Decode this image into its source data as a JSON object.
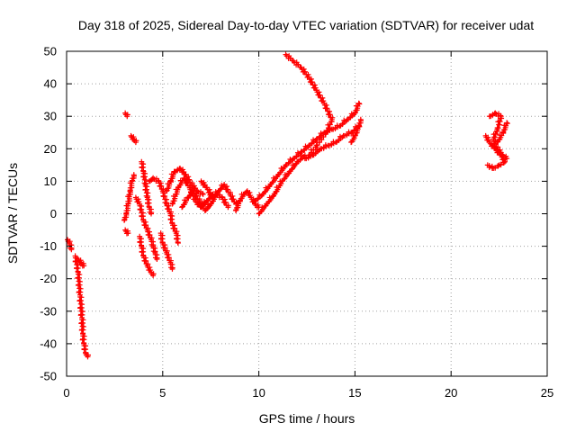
{
  "chart_data": {
    "type": "scatter",
    "title": "Day 318 of 2025, Sidereal Day-to-day VTEC variation (SDTVAR) for receiver udat",
    "xlabel": "GPS time / hours",
    "ylabel": "SDTVAR / TECUs",
    "xlim": [
      0,
      25
    ],
    "ylim": [
      -50,
      50
    ],
    "xticks": [
      0,
      5,
      10,
      15,
      20,
      25
    ],
    "yticks": [
      -50,
      -40,
      -30,
      -20,
      -10,
      0,
      10,
      20,
      30,
      40,
      50
    ],
    "grid": true,
    "marker": "plus",
    "color": "#ff0000",
    "tracks": [
      [
        [
          0.05,
          -8
        ],
        [
          0.15,
          -9
        ],
        [
          0.25,
          -11
        ]
      ],
      [
        [
          0.45,
          -13
        ],
        [
          0.6,
          -18
        ],
        [
          0.7,
          -25
        ],
        [
          0.8,
          -32
        ],
        [
          0.85,
          -37
        ],
        [
          0.9,
          -40
        ],
        [
          1.0,
          -43
        ],
        [
          1.1,
          -44
        ]
      ],
      [
        [
          0.6,
          -14
        ],
        [
          0.75,
          -15
        ],
        [
          0.9,
          -16
        ]
      ],
      [
        [
          3.0,
          -2
        ],
        [
          3.1,
          0
        ],
        [
          3.2,
          3
        ],
        [
          3.3,
          7
        ],
        [
          3.4,
          10
        ],
        [
          3.5,
          12
        ]
      ],
      [
        [
          3.05,
          -5
        ],
        [
          3.2,
          -6
        ]
      ],
      [
        [
          3.05,
          31
        ],
        [
          3.15,
          30
        ]
      ],
      [
        [
          3.35,
          24
        ],
        [
          3.5,
          23
        ],
        [
          3.6,
          22
        ]
      ],
      [
        [
          3.6,
          5
        ],
        [
          3.8,
          3
        ],
        [
          4.0,
          -2
        ],
        [
          4.2,
          -5
        ],
        [
          4.4,
          -8
        ],
        [
          4.5,
          -10
        ],
        [
          4.6,
          -12
        ],
        [
          4.7,
          -14
        ]
      ],
      [
        [
          3.8,
          -7
        ],
        [
          3.9,
          -10
        ],
        [
          4.0,
          -13
        ],
        [
          4.2,
          -16
        ],
        [
          4.4,
          -18
        ],
        [
          4.5,
          -19
        ]
      ],
      [
        [
          3.9,
          16
        ],
        [
          4.0,
          13
        ],
        [
          4.1,
          9
        ],
        [
          4.2,
          5
        ],
        [
          4.3,
          2
        ],
        [
          4.4,
          0
        ]
      ],
      [
        [
          4.3,
          10
        ],
        [
          4.5,
          11
        ],
        [
          4.8,
          10
        ],
        [
          5.0,
          7
        ],
        [
          5.2,
          3
        ],
        [
          5.4,
          0
        ],
        [
          5.5,
          -3
        ],
        [
          5.7,
          -6
        ],
        [
          5.8,
          -9
        ]
      ],
      [
        [
          4.9,
          -6
        ],
        [
          5.0,
          -9
        ],
        [
          5.2,
          -12
        ],
        [
          5.4,
          -15
        ],
        [
          5.5,
          -17
        ]
      ],
      [
        [
          5.2,
          7
        ],
        [
          5.4,
          10
        ],
        [
          5.6,
          13
        ],
        [
          5.9,
          14
        ],
        [
          6.2,
          12
        ],
        [
          6.5,
          9
        ],
        [
          6.8,
          7
        ],
        [
          7.1,
          6
        ]
      ],
      [
        [
          5.5,
          3
        ],
        [
          5.8,
          8
        ],
        [
          6.1,
          11
        ],
        [
          6.4,
          8
        ],
        [
          6.7,
          4
        ],
        [
          7.0,
          2
        ],
        [
          7.3,
          4
        ],
        [
          7.6,
          6
        ]
      ],
      [
        [
          6.0,
          2
        ],
        [
          6.3,
          5
        ],
        [
          6.6,
          7
        ],
        [
          6.9,
          4
        ],
        [
          7.2,
          1
        ],
        [
          7.5,
          3
        ],
        [
          7.8,
          6
        ],
        [
          8.1,
          5
        ],
        [
          8.4,
          2
        ]
      ],
      [
        [
          7.0,
          10
        ],
        [
          7.3,
          8
        ],
        [
          7.6,
          5
        ],
        [
          7.9,
          7
        ],
        [
          8.2,
          9
        ],
        [
          8.5,
          6
        ],
        [
          8.8,
          3
        ]
      ],
      [
        [
          8.8,
          1
        ],
        [
          9.0,
          4
        ],
        [
          9.2,
          6
        ],
        [
          9.4,
          7
        ],
        [
          9.6,
          5
        ],
        [
          9.8,
          3
        ],
        [
          10.0,
          2
        ]
      ],
      [
        [
          9.8,
          4
        ],
        [
          10.2,
          6
        ],
        [
          10.6,
          9
        ],
        [
          11.0,
          12
        ],
        [
          11.4,
          15
        ],
        [
          11.8,
          17
        ],
        [
          12.2,
          19
        ]
      ],
      [
        [
          10.0,
          0
        ],
        [
          10.4,
          3
        ],
        [
          10.8,
          6
        ],
        [
          11.2,
          10
        ],
        [
          11.6,
          13
        ],
        [
          12.0,
          16
        ],
        [
          12.4,
          18
        ]
      ],
      [
        [
          12.2,
          19
        ],
        [
          12.6,
          21
        ],
        [
          13.0,
          23
        ],
        [
          13.4,
          25
        ],
        [
          13.8,
          26
        ],
        [
          14.2,
          27
        ],
        [
          14.6,
          29
        ],
        [
          15.0,
          31
        ],
        [
          15.2,
          34
        ]
      ],
      [
        [
          12.4,
          17
        ],
        [
          12.8,
          18
        ],
        [
          13.2,
          20
        ],
        [
          13.6,
          21
        ],
        [
          14.0,
          22
        ],
        [
          14.4,
          24
        ],
        [
          14.8,
          25
        ],
        [
          15.2,
          27
        ]
      ],
      [
        [
          11.4,
          49
        ],
        [
          11.8,
          47
        ],
        [
          12.2,
          45
        ],
        [
          12.6,
          42
        ],
        [
          13.0,
          38
        ],
        [
          13.4,
          34
        ],
        [
          13.8,
          29
        ],
        [
          13.5,
          25
        ],
        [
          13.0,
          21
        ],
        [
          12.6,
          18
        ]
      ],
      [
        [
          14.8,
          22
        ],
        [
          15.0,
          24
        ],
        [
          15.2,
          27
        ],
        [
          15.3,
          29
        ]
      ],
      [
        [
          22.0,
          30
        ],
        [
          22.3,
          31
        ],
        [
          22.6,
          30
        ],
        [
          22.4,
          26
        ],
        [
          22.2,
          23
        ],
        [
          22.4,
          20
        ],
        [
          22.7,
          18
        ],
        [
          22.9,
          17
        ]
      ],
      [
        [
          21.8,
          24
        ],
        [
          22.0,
          22
        ],
        [
          22.3,
          20
        ],
        [
          22.6,
          18
        ],
        [
          22.8,
          16
        ],
        [
          22.5,
          15
        ],
        [
          22.2,
          14
        ],
        [
          21.9,
          15
        ]
      ],
      [
        [
          22.4,
          22
        ],
        [
          22.7,
          25
        ],
        [
          22.9,
          28
        ]
      ]
    ]
  }
}
